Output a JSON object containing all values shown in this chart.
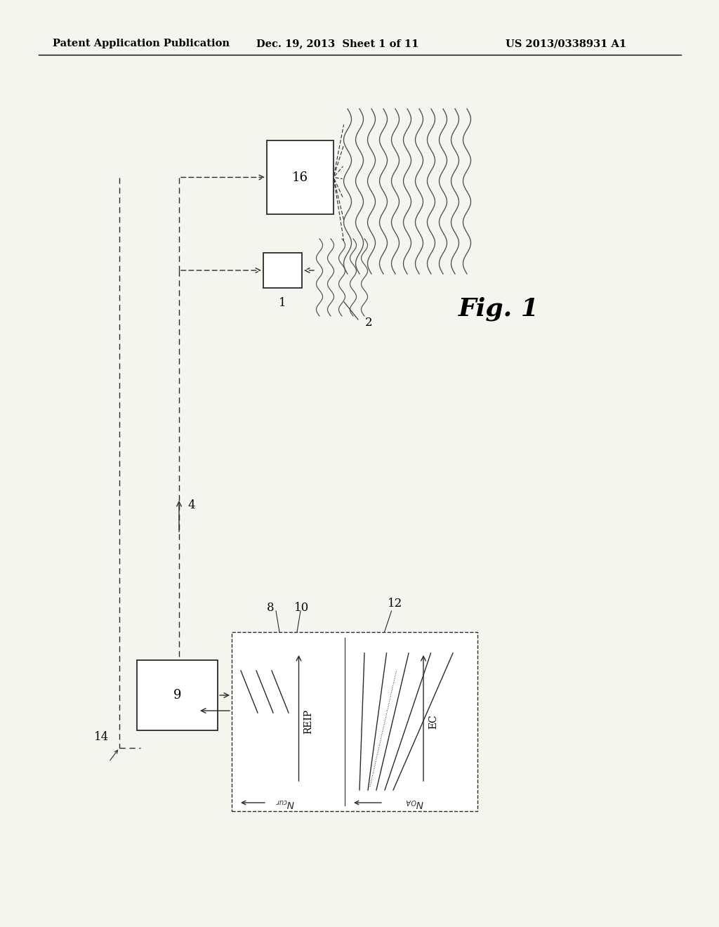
{
  "bg_color": "#f5f5f0",
  "header_left": "Patent Application Publication",
  "header_center": "Dec. 19, 2013  Sheet 1 of 11",
  "header_right": "US 2013/0338931 A1",
  "fig_label": "Fig. 1",
  "box1_label": "1",
  "box16_label": "16",
  "box9_label": "9",
  "label_2": "2",
  "label_4": "4",
  "label_8": "8",
  "label_10": "10",
  "label_12": "12",
  "label_14": "14",
  "reip_label": "REIP",
  "ec_label": "EC",
  "ncur_label": "N",
  "ncur_sub": "cur",
  "noa_label": "N",
  "noa_sub": "OA"
}
